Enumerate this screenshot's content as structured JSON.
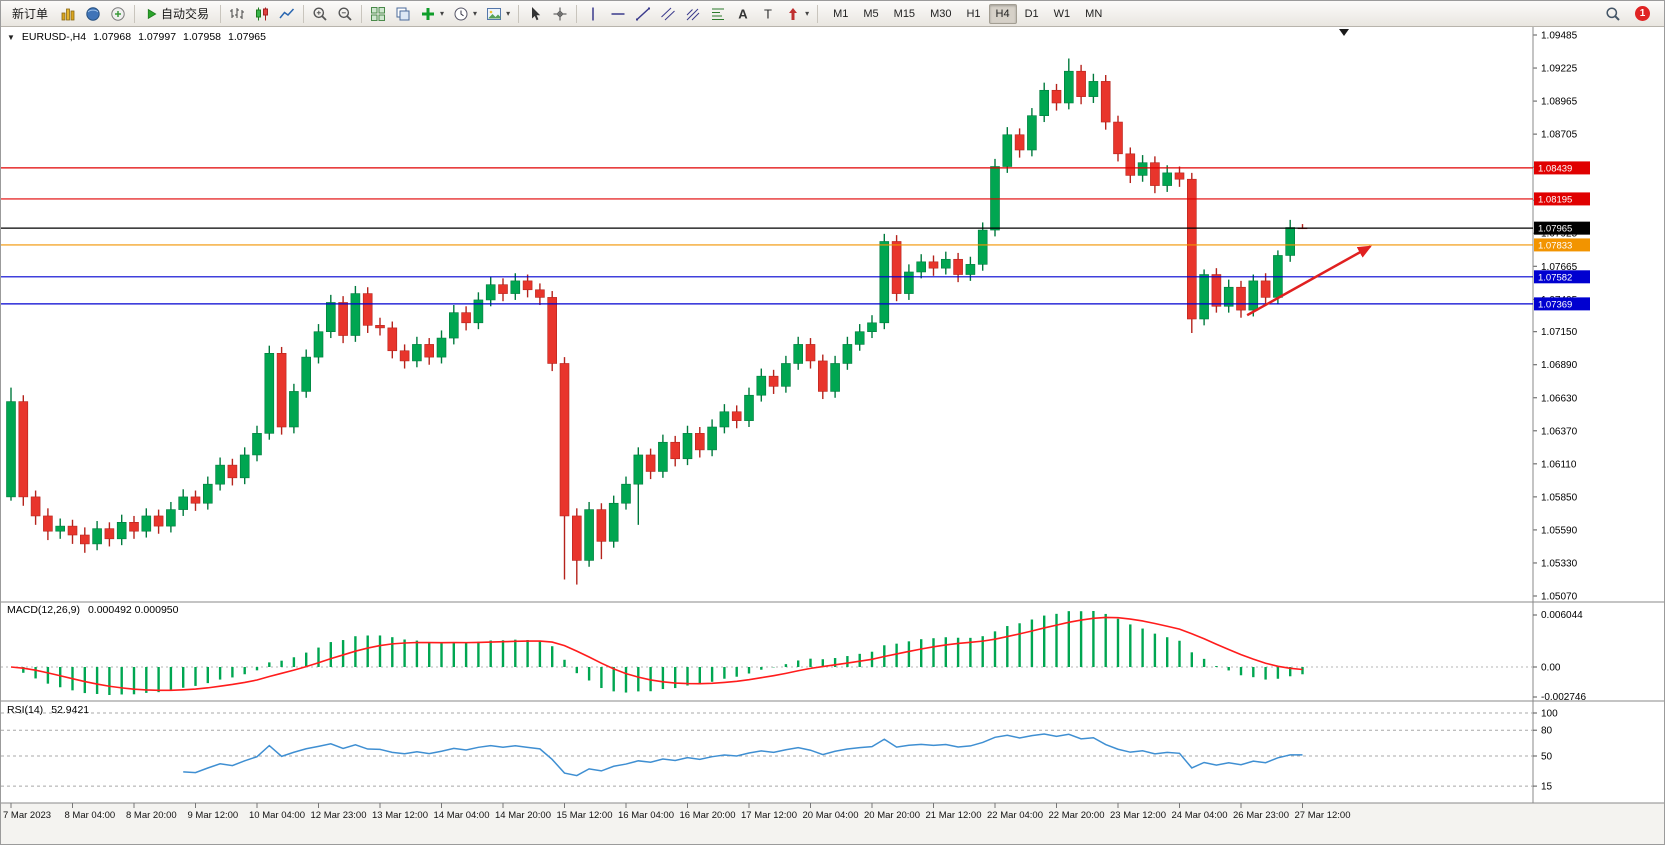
{
  "toolbar": {
    "new_order_label": "新订单",
    "auto_trading_label": "自动交易",
    "timeframes": [
      "M1",
      "M5",
      "M15",
      "M30",
      "H1",
      "H4",
      "D1",
      "W1",
      "MN"
    ],
    "active_timeframe": "H4",
    "notification_count": "1"
  },
  "chart_header": {
    "symbol": "EURUSD-,H4",
    "open": "1.07968",
    "high": "1.07997",
    "low": "1.07958",
    "close": "1.07965"
  },
  "price_axis": {
    "ticks": [
      "1.09485",
      "1.09225",
      "1.08965",
      "1.08705",
      "1.08445",
      "1.08185",
      "1.07925",
      "1.07665",
      "1.07405",
      "1.07150",
      "1.06890",
      "1.06630",
      "1.06370",
      "1.06110",
      "1.05850",
      "1.05590",
      "1.05330",
      "1.05070"
    ]
  },
  "hlines": [
    {
      "price": 1.08439,
      "label": "1.08439",
      "color": "#e00000"
    },
    {
      "price": 1.08195,
      "label": "1.08195",
      "color": "#e00000"
    },
    {
      "price": 1.07965,
      "label": "1.07965",
      "color": "#000000"
    },
    {
      "price": 1.07833,
      "label": "1.07833",
      "color": "#f29400"
    },
    {
      "price": 1.07582,
      "label": "1.07582",
      "color": "#0000d0"
    },
    {
      "price": 1.07369,
      "label": "1.07369",
      "color": "#0000d0"
    }
  ],
  "time_axis": {
    "step": 5,
    "labels": [
      "7 Mar 2023",
      "8 Mar 04:00",
      "8 Mar 20:00",
      "9 Mar 12:00",
      "10 Mar 04:00",
      "12 Mar 23:00",
      "13 Mar 12:00",
      "14 Mar 04:00",
      "14 Mar 20:00",
      "15 Mar 12:00",
      "16 Mar 04:00",
      "16 Mar 20:00",
      "17 Mar 12:00",
      "20 Mar 04:00",
      "20 Mar 20:00",
      "21 Mar 12:00",
      "22 Mar 04:00",
      "22 Mar 20:00",
      "23 Mar 12:00",
      "24 Mar 04:00",
      "26 Mar 23:00",
      "27 Mar 12:00"
    ]
  },
  "annotations": {
    "arrow": {
      "from_index": 100.5,
      "from_price": 1.0728,
      "to_index": 110.5,
      "to_price": 1.0782,
      "color": "#e02020"
    }
  },
  "macd_panel": {
    "title": "MACD(12,26,9)",
    "values": "0.000492 0.000950",
    "axis_top": "0.006044",
    "axis_zero": "0.00",
    "axis_bottom": "-0.002746",
    "fast": 12,
    "slow": 26,
    "signal": 9
  },
  "rsi_panel": {
    "title": "RSI(14)",
    "value": "52.9421",
    "period": 14,
    "levels": [
      100,
      80,
      50,
      15
    ],
    "level_labels": [
      "100",
      "80",
      "50",
      "15"
    ]
  },
  "chart_data": {
    "type": "candlestick",
    "symbol": "EURUSD",
    "timeframe": "H4",
    "ylim": [
      1.0507,
      1.09485
    ],
    "up_color": "#00a651",
    "up_stroke": "#007a3d",
    "down_color": "#e8352c",
    "down_stroke": "#b5231c",
    "candles": [
      [
        1.0585,
        1.0671,
        1.0582,
        1.066
      ],
      [
        1.066,
        1.0665,
        1.0578,
        1.0585
      ],
      [
        1.0585,
        1.059,
        1.0563,
        1.057
      ],
      [
        1.057,
        1.0576,
        1.0551,
        1.0558
      ],
      [
        1.0558,
        1.0568,
        1.0552,
        1.0562
      ],
      [
        1.0562,
        1.0567,
        1.0548,
        1.0555
      ],
      [
        1.0555,
        1.0561,
        1.0541,
        1.0548
      ],
      [
        1.0548,
        1.0566,
        1.0543,
        1.056
      ],
      [
        1.056,
        1.0565,
        1.0546,
        1.0552
      ],
      [
        1.0552,
        1.0571,
        1.0547,
        1.0565
      ],
      [
        1.0565,
        1.057,
        1.0552,
        1.0558
      ],
      [
        1.0558,
        1.0576,
        1.0553,
        1.057
      ],
      [
        1.057,
        1.0575,
        1.0556,
        1.0562
      ],
      [
        1.0562,
        1.0581,
        1.0557,
        1.0575
      ],
      [
        1.0575,
        1.0591,
        1.057,
        1.0585
      ],
      [
        1.0585,
        1.059,
        1.0574,
        1.058
      ],
      [
        1.058,
        1.0601,
        1.0575,
        1.0595
      ],
      [
        1.0595,
        1.0616,
        1.059,
        1.061
      ],
      [
        1.061,
        1.0615,
        1.0594,
        1.06
      ],
      [
        1.06,
        1.0624,
        1.0595,
        1.0618
      ],
      [
        1.0618,
        1.0641,
        1.0613,
        1.0635
      ],
      [
        1.0635,
        1.0704,
        1.063,
        1.0698
      ],
      [
        1.0698,
        1.0703,
        1.0634,
        1.064
      ],
      [
        1.064,
        1.0674,
        1.0635,
        1.0668
      ],
      [
        1.0668,
        1.0701,
        1.0663,
        1.0695
      ],
      [
        1.0695,
        1.0721,
        1.069,
        1.0715
      ],
      [
        1.0715,
        1.0744,
        1.071,
        1.0738
      ],
      [
        1.0738,
        1.0743,
        1.0706,
        1.0712
      ],
      [
        1.0712,
        1.0751,
        1.0707,
        1.0745
      ],
      [
        1.0745,
        1.075,
        1.0714,
        1.072
      ],
      [
        1.072,
        1.0726,
        1.0712,
        1.0718
      ],
      [
        1.0718,
        1.0723,
        1.0694,
        1.07
      ],
      [
        1.07,
        1.0705,
        1.0686,
        1.0692
      ],
      [
        1.0692,
        1.0711,
        1.0687,
        1.0705
      ],
      [
        1.0705,
        1.071,
        1.0689,
        1.0695
      ],
      [
        1.0695,
        1.0716,
        1.069,
        1.071
      ],
      [
        1.071,
        1.0736,
        1.0705,
        1.073
      ],
      [
        1.073,
        1.0735,
        1.0716,
        1.0722
      ],
      [
        1.0722,
        1.0746,
        1.0717,
        1.074
      ],
      [
        1.074,
        1.0758,
        1.0735,
        1.0752
      ],
      [
        1.0752,
        1.0757,
        1.0739,
        1.0745
      ],
      [
        1.0745,
        1.0761,
        1.074,
        1.0755
      ],
      [
        1.0755,
        1.076,
        1.0742,
        1.0748
      ],
      [
        1.0748,
        1.0753,
        1.0736,
        1.0742
      ],
      [
        1.0742,
        1.0747,
        1.0684,
        1.069
      ],
      [
        1.069,
        1.0695,
        1.052,
        1.057
      ],
      [
        1.057,
        1.0576,
        1.0516,
        1.0535
      ],
      [
        1.0535,
        1.0581,
        1.053,
        1.0575
      ],
      [
        1.0575,
        1.058,
        1.0536,
        1.055
      ],
      [
        1.055,
        1.0586,
        1.0545,
        1.058
      ],
      [
        1.058,
        1.0601,
        1.0575,
        1.0595
      ],
      [
        1.0595,
        1.0624,
        1.0563,
        1.0618
      ],
      [
        1.0618,
        1.0623,
        1.0599,
        1.0605
      ],
      [
        1.0605,
        1.0634,
        1.06,
        1.0628
      ],
      [
        1.0628,
        1.0633,
        1.0609,
        1.0615
      ],
      [
        1.0615,
        1.0641,
        1.061,
        1.0635
      ],
      [
        1.0635,
        1.064,
        1.0616,
        1.0622
      ],
      [
        1.0622,
        1.0646,
        1.0617,
        1.064
      ],
      [
        1.064,
        1.0658,
        1.0635,
        1.0652
      ],
      [
        1.0652,
        1.0657,
        1.0639,
        1.0645
      ],
      [
        1.0645,
        1.0671,
        1.064,
        1.0665
      ],
      [
        1.0665,
        1.0686,
        1.066,
        1.068
      ],
      [
        1.068,
        1.0685,
        1.0666,
        1.0672
      ],
      [
        1.0672,
        1.0696,
        1.0667,
        1.069
      ],
      [
        1.069,
        1.0711,
        1.0685,
        1.0705
      ],
      [
        1.0705,
        1.071,
        1.0686,
        1.0692
      ],
      [
        1.0692,
        1.0697,
        1.0662,
        1.0668
      ],
      [
        1.0668,
        1.0696,
        1.0663,
        1.069
      ],
      [
        1.069,
        1.0711,
        1.0685,
        1.0705
      ],
      [
        1.0705,
        1.0721,
        1.07,
        1.0715
      ],
      [
        1.0715,
        1.0728,
        1.071,
        1.0722
      ],
      [
        1.0722,
        1.0792,
        1.0717,
        1.0786
      ],
      [
        1.0786,
        1.0791,
        1.0739,
        1.0745
      ],
      [
        1.0745,
        1.0768,
        1.074,
        1.0762
      ],
      [
        1.0762,
        1.0776,
        1.0757,
        1.077
      ],
      [
        1.077,
        1.0775,
        1.0759,
        1.0765
      ],
      [
        1.0765,
        1.0778,
        1.076,
        1.0772
      ],
      [
        1.0772,
        1.0777,
        1.0754,
        1.076
      ],
      [
        1.076,
        1.0774,
        1.0755,
        1.0768
      ],
      [
        1.0768,
        1.0801,
        1.0763,
        1.0795
      ],
      [
        1.0795,
        1.0851,
        1.079,
        1.0845
      ],
      [
        1.0845,
        1.0876,
        1.084,
        1.087
      ],
      [
        1.087,
        1.0875,
        1.0852,
        1.0858
      ],
      [
        1.0858,
        1.0891,
        1.0853,
        1.0885
      ],
      [
        1.0885,
        1.0911,
        1.088,
        1.0905
      ],
      [
        1.0905,
        1.091,
        1.0889,
        1.0895
      ],
      [
        1.0895,
        1.093,
        1.089,
        1.092
      ],
      [
        1.092,
        1.0925,
        1.0894,
        1.09
      ],
      [
        1.09,
        1.0918,
        1.0895,
        1.0912
      ],
      [
        1.0912,
        1.0917,
        1.0874,
        1.088
      ],
      [
        1.088,
        1.0885,
        1.0849,
        1.0855
      ],
      [
        1.0855,
        1.086,
        1.0832,
        1.0838
      ],
      [
        1.0838,
        1.0854,
        1.0833,
        1.0848
      ],
      [
        1.0848,
        1.0853,
        1.0824,
        1.083
      ],
      [
        1.083,
        1.0846,
        1.0825,
        1.084
      ],
      [
        1.084,
        1.0845,
        1.0829,
        1.0835
      ],
      [
        1.0835,
        1.084,
        1.0714,
        1.0725
      ],
      [
        1.0725,
        1.0764,
        1.072,
        1.076
      ],
      [
        1.076,
        1.0765,
        1.073,
        1.0735
      ],
      [
        1.0735,
        1.0756,
        1.073,
        1.075
      ],
      [
        1.075,
        1.0755,
        1.0726,
        1.0732
      ],
      [
        1.0732,
        1.076,
        1.0727,
        1.0755
      ],
      [
        1.0755,
        1.0761,
        1.0736,
        1.0742
      ],
      [
        1.0742,
        1.0779,
        1.0737,
        1.0775
      ],
      [
        1.0775,
        1.0803,
        1.077,
        1.0797
      ],
      [
        1.07968,
        1.07997,
        1.07958,
        1.07965
      ]
    ]
  }
}
